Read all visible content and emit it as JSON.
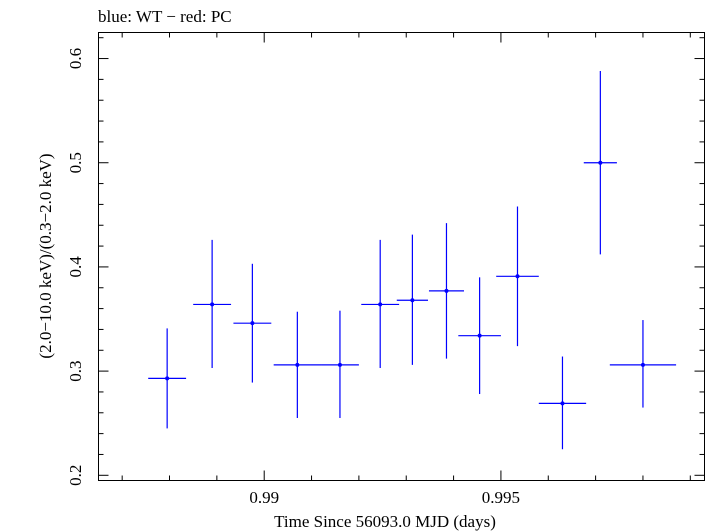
{
  "chart_data": {
    "type": "scatter",
    "title": "blue: WT − red: PC",
    "xlabel": "Time Since 56093.0 MJD (days)",
    "ylabel": "(2.0−10.0 keV)/(0.3−2.0 keV)",
    "xlim": [
      0.9865,
      0.9993
    ],
    "ylim": [
      0.195,
      0.625
    ],
    "x_major_ticks": [
      0.99,
      0.995
    ],
    "x_tick_labels": [
      "0.99",
      "0.995"
    ],
    "x_minor_step": 0.001,
    "y_major_ticks": [
      0.2,
      0.3,
      0.4,
      0.5,
      0.6
    ],
    "y_tick_labels": [
      "0.2",
      "0.3",
      "0.4",
      "0.5",
      "0.6"
    ],
    "y_minor_step": 0.02,
    "grid": false,
    "series": [
      {
        "name": "WT",
        "color": "#0000ff",
        "points": [
          {
            "x": 0.98795,
            "xerr": 0.0004,
            "y": 0.293,
            "ylo": 0.245,
            "yhi": 0.341
          },
          {
            "x": 0.9889,
            "xerr": 0.0004,
            "y": 0.364,
            "ylo": 0.303,
            "yhi": 0.426
          },
          {
            "x": 0.98975,
            "xerr": 0.0004,
            "y": 0.346,
            "ylo": 0.289,
            "yhi": 0.403
          },
          {
            "x": 0.9907,
            "xerr": 0.0005,
            "y": 0.306,
            "ylo": 0.255,
            "yhi": 0.357
          },
          {
            "x": 0.9916,
            "xerr": 0.0004,
            "y": 0.306,
            "ylo": 0.255,
            "yhi": 0.358
          },
          {
            "x": 0.99245,
            "xerr": 0.0004,
            "y": 0.364,
            "ylo": 0.303,
            "yhi": 0.426
          },
          {
            "x": 0.99313,
            "xerr": 0.00033,
            "y": 0.368,
            "ylo": 0.306,
            "yhi": 0.431
          },
          {
            "x": 0.99385,
            "xerr": 0.00037,
            "y": 0.377,
            "ylo": 0.312,
            "yhi": 0.442
          },
          {
            "x": 0.99455,
            "xerr": 0.00045,
            "y": 0.334,
            "ylo": 0.278,
            "yhi": 0.39
          },
          {
            "x": 0.99535,
            "xerr": 0.00045,
            "y": 0.391,
            "ylo": 0.324,
            "yhi": 0.458
          },
          {
            "x": 0.9963,
            "xerr": 0.0005,
            "y": 0.269,
            "ylo": 0.225,
            "yhi": 0.314
          },
          {
            "x": 0.9971,
            "xerr": 0.00035,
            "y": 0.5,
            "ylo": 0.412,
            "yhi": 0.588
          },
          {
            "x": 0.998,
            "xerr": 0.0007,
            "y": 0.306,
            "ylo": 0.265,
            "yhi": 0.349
          }
        ]
      }
    ]
  }
}
